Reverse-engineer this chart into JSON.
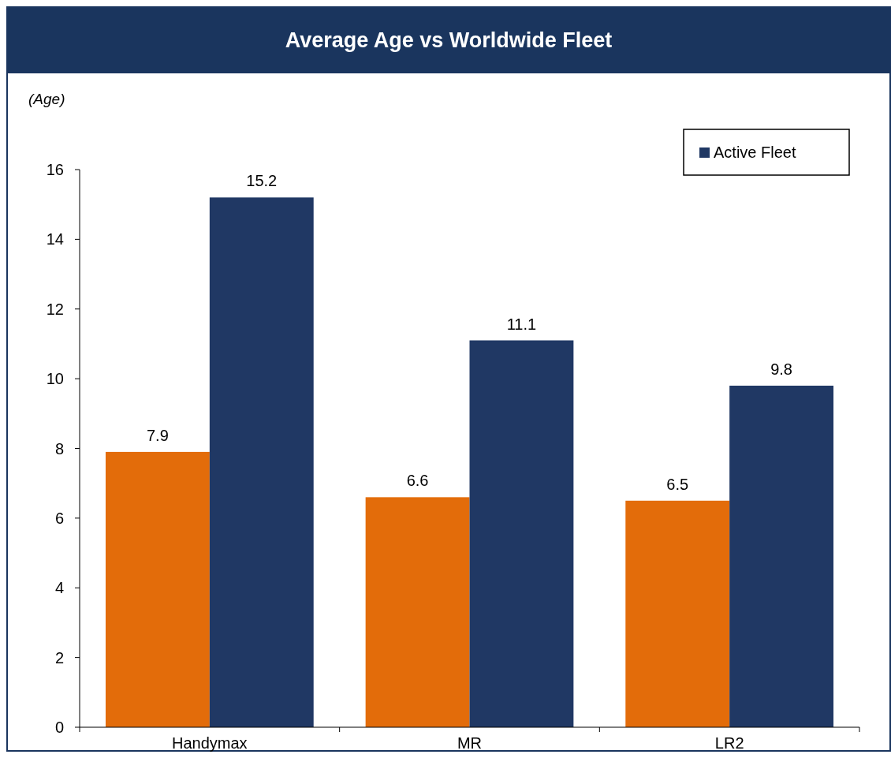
{
  "chart_data": {
    "type": "bar",
    "title": "Average Age vs Worldwide Fleet",
    "ylabel": "(Age)",
    "categories": [
      "Handymax",
      "MR",
      "LR2"
    ],
    "series": [
      {
        "color": "#e36c0a",
        "values": [
          7.9,
          6.6,
          6.5
        ]
      },
      {
        "name": "Active Fleet",
        "color": "#203864",
        "values": [
          15.2,
          11.1,
          9.8
        ]
      }
    ],
    "ylim": [
      0,
      16
    ],
    "yticks": [
      0,
      2,
      4,
      6,
      8,
      10,
      12,
      14,
      16
    ],
    "data_labels": true,
    "legend": "top right",
    "grid": false
  }
}
